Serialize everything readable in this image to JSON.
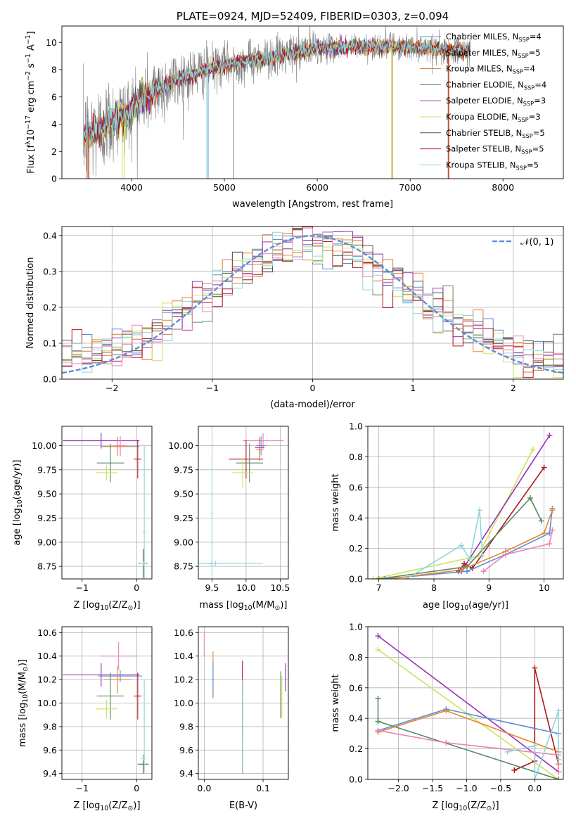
{
  "colors": {
    "Chabrier MILES": "#5b8fd6",
    "Salpeter MILES": "#e8852e",
    "Kroupa MILES": "#dd7733",
    "Chabrier ELODIE": "#5a8a64",
    "Salpeter ELODIE": "#9a30b8",
    "Kroupa ELODIE": "#cde25c",
    "Chabrier STELIB": "#555555",
    "Salpeter STELIB": "#b0151c",
    "Kroupa STELIB": "#8fd6d8",
    "pink": "#e884b8",
    "spectrum": "#808080",
    "normal_curve": "#5b8fd6"
  },
  "chart_data": [
    {
      "id": "spectrum",
      "type": "line",
      "title": "PLATE=0924, MJD=52409, FIBERID=0303, z=0.094",
      "xlabel": "wavelength [Angstrom, rest frame]",
      "ylabel_parts": [
        "Flux [f",
        "λ",
        "10",
        "−17",
        " erg cm",
        "−2",
        " s",
        "−1",
        " A",
        "−1",
        "]"
      ],
      "xlim": [
        3250,
        8650
      ],
      "ylim": [
        0,
        11.2
      ],
      "xticks": [
        4000,
        5000,
        6000,
        7000,
        8000
      ],
      "xtick_labels": [
        "4000",
        "5000",
        "6000",
        "7000",
        "8000"
      ],
      "yticks": [
        0,
        2,
        4,
        6,
        8,
        10
      ],
      "ytick_labels": [
        "0",
        "2",
        "4",
        "6",
        "8",
        "10"
      ],
      "grid": false,
      "legend_position": "top-right",
      "legend": [
        {
          "label": "Chabrier MILES, N",
          "sub": "SSP",
          "val": "=4",
          "color": "#5b8fd6"
        },
        {
          "label": "Salpeter MILES, N",
          "sub": "SSP",
          "val": "=5",
          "color": "#e8852e"
        },
        {
          "label": "Kroupa MILES, N",
          "sub": "SSP",
          "val": "=4",
          "color": "#dd7733"
        },
        {
          "label": "Chabrier ELODIE, N",
          "sub": "SSP",
          "val": "=4",
          "color": "#5a8a64"
        },
        {
          "label": "Salpeter ELODIE, N",
          "sub": "SSP",
          "val": "=3",
          "color": "#9a30b8"
        },
        {
          "label": "Kroupa ELODIE, N",
          "sub": "SSP",
          "val": "=3",
          "color": "#cde25c"
        },
        {
          "label": "Chabrier STELIB, N",
          "sub": "SSP",
          "val": "=5",
          "color": "#555555"
        },
        {
          "label": "Salpeter STELIB, N",
          "sub": "SSP",
          "val": "=5",
          "color": "#b0151c"
        },
        {
          "label": "Kroupa STELIB, N",
          "sub": "SSP",
          "val": "=5",
          "color": "#8fd6d8"
        }
      ],
      "continuum_nodes": [
        [
          3500,
          3.1
        ],
        [
          3700,
          3.8
        ],
        [
          3800,
          4.4
        ],
        [
          3950,
          4.6
        ],
        [
          4050,
          5.6
        ],
        [
          4250,
          6.4
        ],
        [
          4500,
          7.3
        ],
        [
          4850,
          8.1
        ],
        [
          5200,
          8.6
        ],
        [
          5600,
          9.0
        ],
        [
          6000,
          9.55
        ],
        [
          6400,
          9.7
        ],
        [
          6800,
          9.7
        ],
        [
          7200,
          9.6
        ],
        [
          7450,
          9.4
        ]
      ],
      "spectrum_range": [
        3480,
        7430
      ],
      "spectrum_extended_range": [
        3480,
        7650
      ],
      "spectrum_noise": {
        "blue_end": 3.5,
        "mid": 1.4,
        "red_end": 0.9
      },
      "model_noise": 0.25,
      "dropouts": [
        {
          "x": 3520,
          "color": "#808080"
        },
        {
          "x": 3530,
          "color": "#e8852e"
        },
        {
          "x": 3540,
          "color": "#b0151c"
        },
        {
          "x": 3900,
          "color": "#cde25c"
        },
        {
          "x": 3920,
          "color": "#cde25c"
        },
        {
          "x": 4810,
          "color": "#8fd6d8"
        },
        {
          "x": 4825,
          "color": "#5b8fd6"
        },
        {
          "x": 5100,
          "color": "#808080"
        },
        {
          "x": 6800,
          "color": "#cde25c"
        },
        {
          "x": 6810,
          "color": "#dd7733"
        },
        {
          "x": 7410,
          "color": "#b0151c"
        },
        {
          "x": 7420,
          "color": "#e8852e"
        }
      ]
    },
    {
      "id": "residuals",
      "type": "histogram",
      "xlabel": "(data-model)/error",
      "ylabel": "Normed distribution",
      "xlim": [
        -2.5,
        2.5
      ],
      "ylim": [
        0,
        0.425
      ],
      "xticks": [
        -2,
        -1,
        0,
        1,
        2
      ],
      "xtick_labels": [
        "−2",
        "−1",
        "0",
        "1",
        "2"
      ],
      "yticks": [
        0,
        0.1,
        0.2,
        0.3,
        0.4
      ],
      "ytick_labels": [
        "0.0",
        "0.1",
        "0.2",
        "0.3",
        "0.4"
      ],
      "grid": true,
      "legend_position": "top-right",
      "legend_label": "𝒩(0, 1)",
      "bin_width": 0.1,
      "series_colors": [
        "#5b8fd6",
        "#e8852e",
        "#dd7733",
        "#5a8a64",
        "#9a30b8",
        "#cde25c",
        "#555555",
        "#b0151c",
        "#8fd6d8",
        "#e884b8"
      ],
      "bin_scatter": 0.03
    },
    {
      "id": "age-vs-Z",
      "type": "scatter",
      "xlabel_parts": [
        "Z [log",
        "10",
        "(Z/Z",
        "⊙",
        ")]"
      ],
      "ylabel_parts": [
        "age  [log",
        "10",
        "(age/yr)]"
      ],
      "xlim": [
        -1.37,
        0.28
      ],
      "ylim": [
        8.62,
        10.2
      ],
      "xticks": [
        -1,
        0
      ],
      "xtick_labels": [
        "−1",
        "0"
      ],
      "yticks": [
        8.75,
        9.0,
        9.25,
        9.5,
        9.75,
        10.0
      ],
      "ytick_labels": [
        "8.75",
        "9.00",
        "9.25",
        "9.50",
        "9.75",
        "10.00"
      ],
      "grid": true,
      "points": [
        {
          "x": -0.65,
          "y": 10.05,
          "xerr": 0.7,
          "yerr": 0.08,
          "color": "#9a30b8"
        },
        {
          "x": -0.3,
          "y": 9.99,
          "xerr": 0.35,
          "yerr": 0.1,
          "color": "#5b8fd6"
        },
        {
          "x": -0.35,
          "y": 9.99,
          "xerr": 0.25,
          "yerr": 0.1,
          "color": "#e8852e"
        },
        {
          "x": -0.3,
          "y": 10.0,
          "xerr": 0.1,
          "yerr": 0.1,
          "color": "#e884b8"
        },
        {
          "x": -0.48,
          "y": 9.82,
          "xerr": 0.25,
          "yerr": 0.2,
          "color": "#5a8a64"
        },
        {
          "x": -0.55,
          "y": 9.72,
          "xerr": 0.2,
          "yerr": 0.08,
          "color": "#cde25c"
        },
        {
          "x": 0.02,
          "y": 9.86,
          "xerr": 0.07,
          "yerr": 0.2,
          "color": "#b0151c"
        },
        {
          "x": 0.12,
          "y": 8.78,
          "xerr": 0.08,
          "yerr": 0.15,
          "color": "#555555"
        },
        {
          "x": 0.14,
          "y": 9.1,
          "xerr": 0.03,
          "yerr": 0.9,
          "color": "#8fd6d8"
        },
        {
          "x": 0.12,
          "y": 8.78,
          "xerr": 0.06,
          "yerr": 0.02,
          "color": "#8fd6d8"
        }
      ]
    },
    {
      "id": "age-vs-mass",
      "type": "scatter",
      "xlabel_parts": [
        "mass [log",
        "10",
        "(M/M",
        "⊙",
        ")]"
      ],
      "xlim": [
        9.3,
        10.62
      ],
      "ylim": [
        8.62,
        10.2
      ],
      "xticks": [
        9.5,
        10.0,
        10.5
      ],
      "xtick_labels": [
        "9.5",
        "10.0",
        "10.5"
      ],
      "yticks": [
        8.75,
        9.0,
        9.25,
        9.5,
        9.75,
        10.0
      ],
      "ytick_labels": [
        "8.75",
        "9.00",
        "9.25",
        "9.50",
        "9.75",
        "10.00"
      ],
      "grid": true,
      "points": [
        {
          "x": 10.25,
          "y": 10.05,
          "xerr": 0.3,
          "yerr": 0.08,
          "color": "#e884b8"
        },
        {
          "x": 10.22,
          "y": 10.0,
          "xerr": 0.07,
          "yerr": 0.1,
          "color": "#5b8fd6"
        },
        {
          "x": 10.2,
          "y": 9.98,
          "xerr": 0.07,
          "yerr": 0.1,
          "color": "#9a30b8"
        },
        {
          "x": 10.2,
          "y": 9.96,
          "xerr": 0.06,
          "yerr": 0.12,
          "color": "#e8852e"
        },
        {
          "x": 10.0,
          "y": 9.86,
          "xerr": 0.25,
          "yerr": 0.2,
          "color": "#b0151c"
        },
        {
          "x": 10.05,
          "y": 9.82,
          "xerr": 0.2,
          "yerr": 0.2,
          "color": "#5a8a64"
        },
        {
          "x": 9.95,
          "y": 9.72,
          "xerr": 0.15,
          "yerr": 0.15,
          "color": "#cde25c"
        },
        {
          "x": 9.5,
          "y": 8.78,
          "xerr": 0.08,
          "yerr": 0.03,
          "color": "#555555"
        },
        {
          "x": 9.55,
          "y": 8.78,
          "xerr": 0.7,
          "yerr": 0.03,
          "color": "#8fd6d8"
        },
        {
          "x": 9.5,
          "y": 9.3,
          "xerr": 0.02,
          "yerr": 0.6,
          "color": "#8fd6d8"
        }
      ]
    },
    {
      "id": "weight-vs-age",
      "type": "line",
      "xlabel_parts": [
        "age  [log",
        "10",
        "(age/yr)]"
      ],
      "ylabel": "mass weight",
      "xlim": [
        6.8,
        10.35
      ],
      "ylim": [
        0,
        1.0
      ],
      "xticks": [
        7,
        8,
        9,
        10
      ],
      "xtick_labels": [
        "7",
        "8",
        "9",
        "10"
      ],
      "yticks": [
        0,
        0.2,
        0.4,
        0.6,
        0.8,
        1.0
      ],
      "ytick_labels": [
        "0.0",
        "0.2",
        "0.4",
        "0.6",
        "0.8",
        "1.0"
      ],
      "grid": true,
      "series": [
        {
          "color": "#cde25c",
          "x": [
            6.9,
            8.8,
            9.8
          ],
          "y": [
            0.0,
            0.15,
            0.85
          ]
        },
        {
          "color": "#9a30b8",
          "x": [
            8.5,
            10.1
          ],
          "y": [
            0.05,
            0.94
          ]
        },
        {
          "color": "#b0151c",
          "x": [
            8.45,
            8.55,
            8.7,
            10.0
          ],
          "y": [
            0.05,
            0.1,
            0.07,
            0.73
          ]
        },
        {
          "color": "#5a8a64",
          "x": [
            7.0,
            8.6,
            9.75,
            9.95
          ],
          "y": [
            0.0,
            0.08,
            0.53,
            0.38
          ]
        },
        {
          "color": "#5b8fd6",
          "x": [
            7.1,
            8.6,
            9.3,
            10.1,
            10.15
          ],
          "y": [
            0.0,
            0.05,
            0.16,
            0.3,
            0.46
          ]
        },
        {
          "color": "#e8852e",
          "x": [
            7.2,
            8.5,
            9.3,
            10.0,
            10.15
          ],
          "y": [
            0.0,
            0.06,
            0.18,
            0.3,
            0.45
          ]
        },
        {
          "color": "#e884b8",
          "x": [
            8.9,
            9.3,
            10.1,
            10.15
          ],
          "y": [
            0.05,
            0.16,
            0.23,
            0.32
          ]
        },
        {
          "color": "#8fd6d8",
          "x": [
            7.5,
            8.5,
            8.65,
            8.83,
            8.88
          ],
          "y": [
            0.0,
            0.22,
            0.13,
            0.45,
            0.15
          ]
        }
      ]
    },
    {
      "id": "mass-vs-Z",
      "type": "scatter",
      "xlabel_parts": [
        "Z [log",
        "10",
        "(Z/Z",
        "⊙",
        ")]"
      ],
      "ylabel_parts": [
        "mass [log",
        "10",
        "(M/M",
        "⊙",
        ")]"
      ],
      "xlim": [
        -1.37,
        0.28
      ],
      "ylim": [
        9.35,
        10.65
      ],
      "xticks": [
        -1,
        0
      ],
      "xtick_labels": [
        "−1",
        "0"
      ],
      "yticks": [
        9.4,
        9.6,
        9.8,
        10.0,
        10.2,
        10.4,
        10.6
      ],
      "ytick_labels": [
        "9.4",
        "9.6",
        "9.8",
        "10.0",
        "10.2",
        "10.4",
        "10.6"
      ],
      "grid": true,
      "points": [
        {
          "x": -0.33,
          "y": 10.4,
          "xerr": 0.35,
          "yerr": 0.12,
          "color": "#e884b8"
        },
        {
          "x": -0.65,
          "y": 10.24,
          "xerr": 0.7,
          "yerr": 0.1,
          "color": "#9a30b8"
        },
        {
          "x": -0.3,
          "y": 10.23,
          "xerr": 0.4,
          "yerr": 0.05,
          "color": "#5b8fd6"
        },
        {
          "x": -0.35,
          "y": 10.2,
          "xerr": 0.25,
          "yerr": 0.12,
          "color": "#e8852e"
        },
        {
          "x": -0.48,
          "y": 10.06,
          "xerr": 0.25,
          "yerr": 0.2,
          "color": "#5a8a64"
        },
        {
          "x": -0.55,
          "y": 9.95,
          "xerr": 0.2,
          "yerr": 0.08,
          "color": "#cde25c"
        },
        {
          "x": 0.02,
          "y": 10.06,
          "xerr": 0.07,
          "yerr": 0.2,
          "color": "#b0151c"
        },
        {
          "x": 0.12,
          "y": 9.48,
          "xerr": 0.1,
          "yerr": 0.08,
          "color": "#555555"
        },
        {
          "x": 0.14,
          "y": 9.8,
          "xerr": 0.03,
          "yerr": 0.4,
          "color": "#8fd6d8"
        },
        {
          "x": 0.12,
          "y": 9.53,
          "xerr": 0.05,
          "yerr": 0.02,
          "color": "#8fd6d8"
        }
      ]
    },
    {
      "id": "mass-vs-EBV",
      "type": "scatter",
      "xlabel": "E(B-V)",
      "xlim": [
        -0.01,
        0.143
      ],
      "ylim": [
        9.35,
        10.65
      ],
      "xticks": [
        0.0,
        0.1
      ],
      "xtick_labels": [
        "0.0",
        "0.1"
      ],
      "yticks": [
        9.4,
        9.6,
        9.8,
        10.0,
        10.2,
        10.4,
        10.6
      ],
      "ytick_labels": [
        "9.4",
        "9.6",
        "9.8",
        "10.0",
        "10.2",
        "10.4",
        "10.6"
      ],
      "grid": true,
      "points": [
        {
          "x": 0.0,
          "y": 10.5,
          "yerr": 0.1,
          "color": "#e884b8"
        },
        {
          "x": 0.015,
          "y": 10.24,
          "yerr": 0.2,
          "color": "#e8852e"
        },
        {
          "x": 0.015,
          "y": 10.2,
          "yerr": 0.15,
          "color": "#5b8fd6"
        },
        {
          "x": 0.065,
          "y": 10.06,
          "yerr": 0.3,
          "color": "#b0151c"
        },
        {
          "x": 0.065,
          "y": 9.6,
          "yerr": 0.2,
          "color": "#555555"
        },
        {
          "x": 0.065,
          "y": 9.8,
          "yerr": 0.4,
          "color": "#8fd6d8"
        },
        {
          "x": 0.13,
          "y": 10.07,
          "yerr": 0.2,
          "color": "#5a8a64"
        },
        {
          "x": 0.132,
          "y": 10.05,
          "yerr": 0.18,
          "color": "#cde25c"
        },
        {
          "x": 0.138,
          "y": 10.22,
          "yerr": 0.12,
          "color": "#9a30b8"
        }
      ]
    },
    {
      "id": "weight-vs-Z",
      "type": "line",
      "xlabel_parts": [
        "Z [log",
        "10",
        "(Z/Z",
        "⊙",
        ")]"
      ],
      "ylabel": "mass weight",
      "xlim": [
        -2.45,
        0.42
      ],
      "ylim": [
        0,
        1.0
      ],
      "xticks": [
        -2.0,
        -1.5,
        -1.0,
        -0.5,
        0.0
      ],
      "xtick_labels": [
        "−2.0",
        "−1.5",
        "−1.0",
        "−0.5",
        "0.0"
      ],
      "yticks": [
        0,
        0.2,
        0.4,
        0.6,
        0.8,
        1.0
      ],
      "ytick_labels": [
        "0.0",
        "0.2",
        "0.4",
        "0.6",
        "0.8",
        "1.0"
      ],
      "grid": true,
      "series": [
        {
          "color": "#cde25c",
          "x": [
            -2.3,
            0.35
          ],
          "y": [
            0.85,
            0.0
          ]
        },
        {
          "color": "#9a30b8",
          "x": [
            -2.3,
            0.35
          ],
          "y": [
            0.94,
            0.05
          ]
        },
        {
          "color": "#b0151c",
          "x": [
            -0.3,
            0.0,
            0.0,
            0.35,
            0.35
          ],
          "y": [
            0.06,
            0.12,
            0.73,
            0.1,
            0.05
          ]
        },
        {
          "color": "#5a8a64",
          "x": [
            -2.3,
            -2.3,
            -2.3,
            0.35
          ],
          "y": [
            0.53,
            0.38,
            0.38,
            0.0
          ]
        },
        {
          "color": "#5b8fd6",
          "x": [
            -2.3,
            -1.3,
            0.35,
            0.35
          ],
          "y": [
            0.32,
            0.46,
            0.3,
            0.05
          ]
        },
        {
          "color": "#e8852e",
          "x": [
            -2.3,
            -1.3,
            0.35,
            0.35
          ],
          "y": [
            0.31,
            0.45,
            0.18,
            0.1
          ]
        },
        {
          "color": "#e884b8",
          "x": [
            -2.3,
            -1.3,
            0.35,
            0.35
          ],
          "y": [
            0.32,
            0.24,
            0.16,
            0.05
          ]
        },
        {
          "color": "#8fd6d8",
          "x": [
            -0.4,
            0.0,
            0.0,
            0.35,
            0.35
          ],
          "y": [
            0.18,
            0.22,
            0.0,
            0.45,
            0.13
          ]
        }
      ]
    }
  ]
}
